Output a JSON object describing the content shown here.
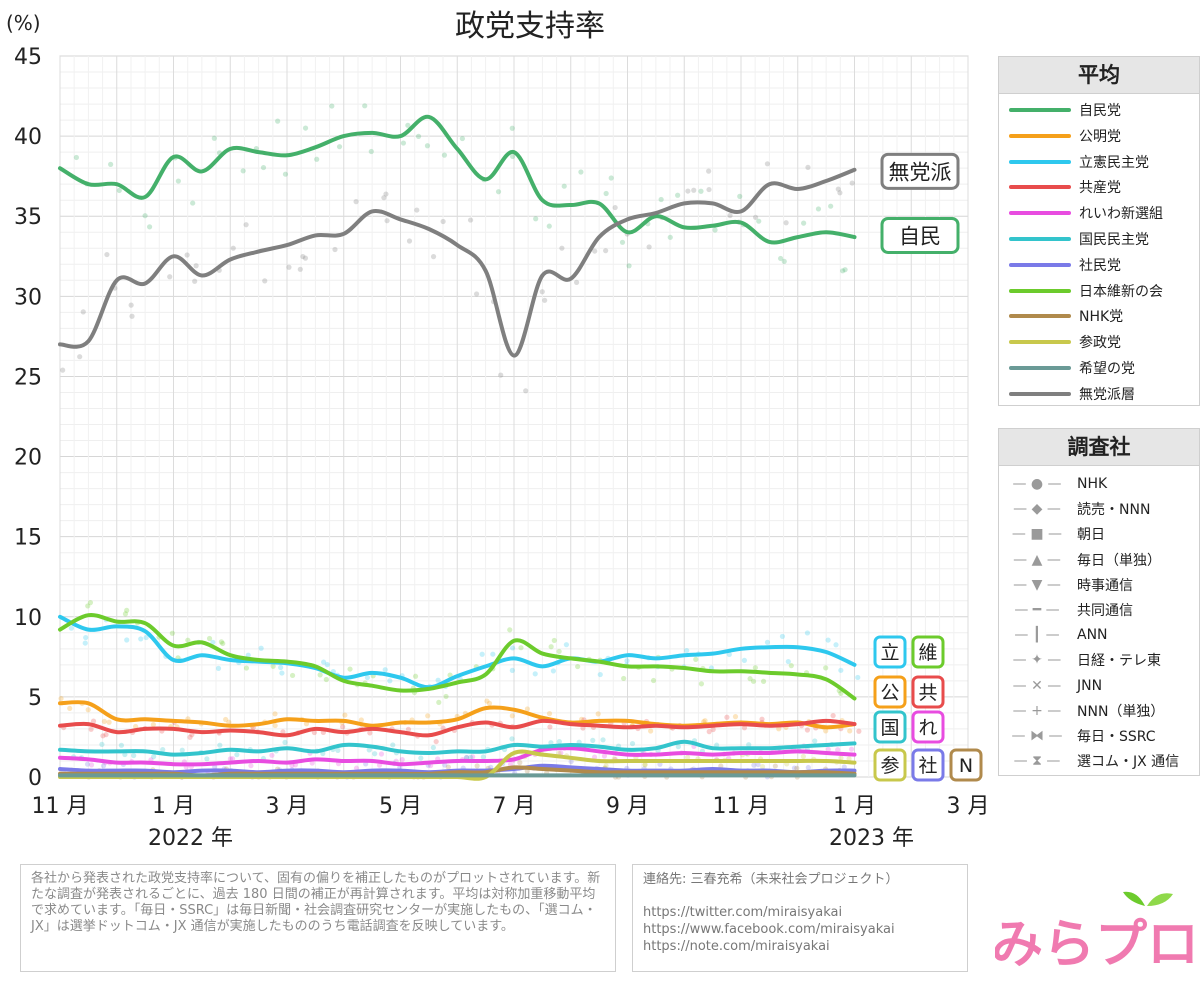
{
  "chart_data": {
    "type": "line",
    "title": "政党支持率",
    "ylabel": "(%)",
    "ylim": [
      0,
      45
    ],
    "yticks": [
      "0",
      "5",
      "10",
      "15",
      "20",
      "25",
      "30",
      "35",
      "40",
      "45"
    ],
    "xlim": [
      0,
      16
    ],
    "xticks": [
      {
        "label": "11 月",
        "x": 0
      },
      {
        "label": "1 月",
        "x": 2
      },
      {
        "label": "3 月",
        "x": 4
      },
      {
        "label": "5 月",
        "x": 6
      },
      {
        "label": "7 月",
        "x": 8
      },
      {
        "label": "9 月",
        "x": 10
      },
      {
        "label": "11 月",
        "x": 12
      },
      {
        "label": "1 月",
        "x": 14
      },
      {
        "label": "3 月",
        "x": 16
      }
    ],
    "years": [
      {
        "label": "2022 年",
        "x": 2.3
      },
      {
        "label": "2023 年",
        "x": 14.3
      }
    ],
    "series": [
      {
        "name": "自民党",
        "color": "#44b06a",
        "x": [
          0,
          0.5,
          1,
          1.5,
          2,
          2.5,
          3,
          3.5,
          4,
          4.5,
          5,
          5.5,
          6,
          6.5,
          7,
          7.5,
          8,
          8.5,
          9,
          9.5,
          10,
          10.5,
          11,
          11.5,
          12,
          12.5,
          13,
          13.5,
          14
        ],
        "values": [
          38,
          37,
          37,
          36.2,
          38.7,
          37.8,
          39.2,
          39,
          38.8,
          39.3,
          40,
          40.2,
          40,
          41.2,
          39.2,
          37.3,
          39,
          36,
          35.7,
          35.8,
          34,
          35,
          34.3,
          34.4,
          34.6,
          33.4,
          33.7,
          34,
          33.7
        ]
      },
      {
        "name": "公明党",
        "color": "#f5a01a",
        "x": [
          0,
          0.5,
          1,
          1.5,
          2,
          2.5,
          3,
          3.5,
          4,
          4.5,
          5,
          5.5,
          6,
          6.5,
          7,
          7.5,
          8,
          8.5,
          9,
          9.5,
          10,
          10.5,
          11,
          11.5,
          12,
          12.5,
          13,
          13.5,
          14
        ],
        "values": [
          4.6,
          4.6,
          3.6,
          3.6,
          3.5,
          3.4,
          3.2,
          3.3,
          3.6,
          3.5,
          3.5,
          3.2,
          3.4,
          3.4,
          3.6,
          4.3,
          4.2,
          3.7,
          3.4,
          3.5,
          3.5,
          3.3,
          3.2,
          3.3,
          3.4,
          3.3,
          3.4,
          3.1,
          3.3
        ]
      },
      {
        "name": "立憲民主党",
        "color": "#2ec8ee",
        "x": [
          0,
          0.5,
          1,
          1.5,
          2,
          2.5,
          3,
          3.5,
          4,
          4.5,
          5,
          5.5,
          6,
          6.5,
          7,
          7.5,
          8,
          8.5,
          9,
          9.5,
          10,
          10.5,
          11,
          11.5,
          12,
          12.5,
          13,
          13.5,
          14
        ],
        "values": [
          10,
          9.2,
          9.4,
          9.1,
          7.3,
          7.6,
          7.3,
          7.2,
          7.1,
          6.8,
          6.2,
          6.5,
          6.2,
          5.6,
          6.3,
          6.9,
          7.4,
          6.9,
          7.4,
          7.2,
          7.6,
          7.4,
          7.6,
          7.7,
          8,
          8.1,
          8.1,
          7.8,
          7
        ]
      },
      {
        "name": "共産党",
        "color": "#e84c4c",
        "x": [
          0,
          0.5,
          1,
          1.5,
          2,
          2.5,
          3,
          3.5,
          4,
          4.5,
          5,
          5.5,
          6,
          6.5,
          7,
          7.5,
          8,
          8.5,
          9,
          9.5,
          10,
          10.5,
          11,
          11.5,
          12,
          12.5,
          13,
          13.5,
          14
        ],
        "values": [
          3.2,
          3.3,
          2.8,
          3,
          3,
          2.8,
          2.9,
          2.8,
          2.6,
          3,
          2.8,
          3,
          2.8,
          2.6,
          3.1,
          3.4,
          3.1,
          3.5,
          3.3,
          3.2,
          3.1,
          3.2,
          3.1,
          3.2,
          3.3,
          3.2,
          3.3,
          3.5,
          3.3
        ]
      },
      {
        "name": "れいわ新選組",
        "color": "#e84ce0",
        "x": [
          0,
          0.5,
          1,
          1.5,
          2,
          2.5,
          3,
          3.5,
          4,
          4.5,
          5,
          5.5,
          6,
          6.5,
          7,
          7.5,
          8,
          8.5,
          9,
          9.5,
          10,
          10.5,
          11,
          11.5,
          12,
          12.5,
          13,
          13.5,
          14
        ],
        "values": [
          1.2,
          1.1,
          0.9,
          0.9,
          0.8,
          0.8,
          0.9,
          1,
          0.9,
          1.1,
          1,
          1,
          0.8,
          0.9,
          1,
          1,
          1.1,
          1.7,
          1.8,
          1.6,
          1.4,
          1.4,
          1.5,
          1.4,
          1.5,
          1.5,
          1.6,
          1.5,
          1.4
        ]
      },
      {
        "name": "国民民主党",
        "color": "#33c4cc",
        "x": [
          0,
          0.5,
          1,
          1.5,
          2,
          2.5,
          3,
          3.5,
          4,
          4.5,
          5,
          5.5,
          6,
          6.5,
          7,
          7.5,
          8,
          8.5,
          9,
          9.5,
          10,
          10.5,
          11,
          11.5,
          12,
          12.5,
          13,
          13.5,
          14
        ],
        "values": [
          1.7,
          1.6,
          1.6,
          1.6,
          1.4,
          1.5,
          1.7,
          1.6,
          1.8,
          1.6,
          2,
          1.9,
          1.6,
          1.5,
          1.6,
          1.6,
          2,
          1.9,
          2,
          1.9,
          1.7,
          1.8,
          2.2,
          1.8,
          1.8,
          1.8,
          1.9,
          2,
          2.1
        ]
      },
      {
        "name": "社民党",
        "color": "#7a7ae8",
        "x": [
          0,
          0.5,
          1,
          1.5,
          2,
          2.5,
          3,
          3.5,
          4,
          4.5,
          5,
          5.5,
          6,
          6.5,
          7,
          7.5,
          8,
          8.5,
          9,
          9.5,
          10,
          10.5,
          11,
          11.5,
          12,
          12.5,
          13,
          13.5,
          14
        ],
        "values": [
          0.5,
          0.4,
          0.4,
          0.4,
          0.3,
          0.4,
          0.4,
          0.3,
          0.4,
          0.4,
          0.3,
          0.4,
          0.4,
          0.3,
          0.4,
          0.4,
          0.5,
          0.7,
          0.6,
          0.5,
          0.4,
          0.4,
          0.4,
          0.5,
          0.4,
          0.4,
          0.3,
          0.4,
          0.4
        ]
      },
      {
        "name": "日本維新の会",
        "color": "#6ccb2c",
        "x": [
          0,
          0.5,
          1,
          1.5,
          2,
          2.5,
          3,
          3.5,
          4,
          4.5,
          5,
          5.5,
          6,
          6.5,
          7,
          7.5,
          8,
          8.5,
          9,
          9.5,
          10,
          10.5,
          11,
          11.5,
          12,
          12.5,
          13,
          13.5,
          14
        ],
        "values": [
          9.2,
          10.1,
          9.7,
          9.6,
          8.2,
          8.4,
          7.6,
          7.3,
          7.2,
          6.9,
          6,
          5.7,
          5.4,
          5.5,
          5.9,
          6.4,
          8.5,
          7.7,
          7.4,
          7.2,
          6.9,
          6.9,
          6.8,
          6.6,
          6.6,
          6.5,
          6.4,
          6.1,
          4.9
        ]
      },
      {
        "name": "NHK党",
        "color": "#b08a4c",
        "x": [
          0,
          0.5,
          1,
          1.5,
          2,
          2.5,
          3,
          3.5,
          4,
          4.5,
          5,
          5.5,
          6,
          6.5,
          7,
          7.5,
          8,
          8.5,
          9,
          9.5,
          10,
          10.5,
          11,
          11.5,
          12,
          12.5,
          13,
          13.5,
          14
        ],
        "values": [
          0.2,
          0.2,
          0.2,
          0.2,
          0.2,
          0.1,
          0.2,
          0.2,
          0.2,
          0.2,
          0.2,
          0.2,
          0.2,
          0.2,
          0.3,
          0.3,
          0.6,
          0.5,
          0.4,
          0.3,
          0.3,
          0.3,
          0.3,
          0.3,
          0.3,
          0.3,
          0.3,
          0.3,
          0.2
        ]
      },
      {
        "name": "参政党",
        "color": "#c8c84c",
        "x": [
          0,
          0.5,
          1,
          1.5,
          2,
          2.5,
          3,
          3.5,
          4,
          4.5,
          5,
          5.5,
          6,
          6.5,
          7,
          7.5,
          8,
          8.5,
          9,
          9.5,
          10,
          10.5,
          11,
          11.5,
          12,
          12.5,
          13,
          13.5,
          14
        ],
        "values": [
          0,
          0,
          0,
          0,
          0,
          0,
          0,
          0,
          0,
          0,
          0,
          0,
          0,
          0,
          0,
          0,
          1.5,
          1.4,
          1.2,
          1,
          1,
          1,
          1,
          1,
          1,
          1,
          1,
          1,
          0.9
        ]
      },
      {
        "name": "希望の党",
        "color": "#6a9a96",
        "x": [
          0,
          0.5,
          1,
          1.5,
          2,
          2.5,
          3,
          3.5,
          4,
          4.5,
          5,
          5.5,
          6,
          6.5,
          7,
          7.5,
          8,
          8.5,
          9,
          9.5,
          10,
          10.5,
          11,
          11.5,
          12,
          12.5,
          13,
          13.5,
          14
        ],
        "values": [
          0.1,
          0.1,
          0.1,
          0.1,
          0.1,
          0.1,
          0.1,
          0.1,
          0.1,
          0.1,
          0.1,
          0.1,
          0.1,
          0.1,
          0.1,
          0.1,
          0.1,
          0.1,
          0.1,
          0.1,
          0.1,
          0.1,
          0.1,
          0.1,
          0.1,
          0.1,
          0.1,
          0.1,
          0.1
        ]
      },
      {
        "name": "無党派層",
        "color": "#7f7f7f",
        "x": [
          0,
          0.5,
          1,
          1.5,
          2,
          2.5,
          3,
          3.5,
          4,
          4.5,
          5,
          5.5,
          6,
          6.5,
          7,
          7.5,
          8,
          8.5,
          9,
          9.5,
          10,
          10.5,
          11,
          11.5,
          12,
          12.5,
          13,
          13.5,
          14
        ],
        "values": [
          27,
          27.2,
          31,
          30.8,
          32.5,
          31.3,
          32.3,
          32.8,
          33.2,
          33.8,
          33.9,
          35.3,
          34.8,
          34.2,
          33.2,
          31.6,
          26.3,
          31.3,
          31.1,
          33.7,
          34.8,
          35.2,
          35.8,
          35.8,
          35.3,
          37,
          36.7,
          37.2,
          37.9
        ]
      }
    ],
    "end_labels": [
      {
        "text": "無党派",
        "value": 37.8,
        "color": "#7f7f7f"
      },
      {
        "text": "自民",
        "value": 33.8,
        "color": "#44b06a"
      }
    ],
    "small_labels": [
      {
        "text": "立",
        "color": "#2ec8ee",
        "row": 0,
        "col": 0
      },
      {
        "text": "維",
        "color": "#6ccb2c",
        "row": 0,
        "col": 1
      },
      {
        "text": "公",
        "color": "#f5a01a",
        "row": 1,
        "col": 0
      },
      {
        "text": "共",
        "color": "#e84c4c",
        "row": 1,
        "col": 1
      },
      {
        "text": "国",
        "color": "#33c4cc",
        "row": 2,
        "col": 0
      },
      {
        "text": "れ",
        "color": "#e84ce0",
        "row": 2,
        "col": 1
      },
      {
        "text": "参",
        "color": "#c8c84c",
        "row": 3,
        "col": 0
      },
      {
        "text": "社",
        "color": "#7a7ae8",
        "row": 3,
        "col": 1
      },
      {
        "text": "N",
        "color": "#b08a4c",
        "row": 3,
        "col": 2
      }
    ]
  },
  "legend_avg": {
    "title": "平均",
    "items": [
      {
        "label": "自民党",
        "color": "#44b06a"
      },
      {
        "label": "公明党",
        "color": "#f5a01a"
      },
      {
        "label": "立憲民主党",
        "color": "#2ec8ee"
      },
      {
        "label": "共産党",
        "color": "#e84c4c"
      },
      {
        "label": "れいわ新選組",
        "color": "#e84ce0"
      },
      {
        "label": "国民民主党",
        "color": "#33c4cc"
      },
      {
        "label": "社民党",
        "color": "#7a7ae8"
      },
      {
        "label": "日本維新の会",
        "color": "#6ccb2c"
      },
      {
        "label": "NHK党",
        "color": "#b08a4c"
      },
      {
        "label": "参政党",
        "color": "#c8c84c"
      },
      {
        "label": "希望の党",
        "color": "#6a9a96"
      },
      {
        "label": "無党派層",
        "color": "#7f7f7f"
      }
    ]
  },
  "legend_survey": {
    "title": "調査社",
    "items": [
      {
        "label": "NHK",
        "icon": "circle-icon",
        "glyph": "●"
      },
      {
        "label": "読売・NNN",
        "icon": "diamond-icon",
        "glyph": "◆"
      },
      {
        "label": "朝日",
        "icon": "square-icon",
        "glyph": "■"
      },
      {
        "label": "毎日（単独）",
        "icon": "triangle-up-icon",
        "glyph": "▲"
      },
      {
        "label": "時事通信",
        "icon": "triangle-down-icon",
        "glyph": "▼"
      },
      {
        "label": "共同通信",
        "icon": "dash-icon",
        "glyph": "━"
      },
      {
        "label": "ANN",
        "icon": "bar-icon",
        "glyph": "┃"
      },
      {
        "label": "日経・テレ東",
        "icon": "star-icon",
        "glyph": "✦"
      },
      {
        "label": "JNN",
        "icon": "cross-icon",
        "glyph": "✕"
      },
      {
        "label": "NNN（単独）",
        "icon": "plus-icon",
        "glyph": "+"
      },
      {
        "label": "毎日・SSRC",
        "icon": "bowtie-icon",
        "glyph": "⧓"
      },
      {
        "label": "選コム・JX 通信",
        "icon": "hourglass-icon",
        "glyph": "⧗"
      }
    ]
  },
  "notes": {
    "text": "各社から発表された政党支持率について、固有の偏りを補正したものがプロットされています。新たな調査が発表されるごとに、過去 180 日間の補正が再計算されます。平均は対称加重移動平均で求めています。「毎日・SSRC」は毎日新聞・社会調査研究センターが実施したもの、「選コム・JX」は選挙ドットコム・JX 通信が実施したもののうち電話調査を反映しています。"
  },
  "contact": {
    "line1": "連絡先: 三春充希（未来社会プロジェクト）",
    "twitter": "https://twitter.com/miraisyakai",
    "facebook": "https://www.facebook.com/miraisyakai",
    "note": "https://note.com/miraisyakai"
  },
  "logo": {
    "text": "みらプロ"
  }
}
